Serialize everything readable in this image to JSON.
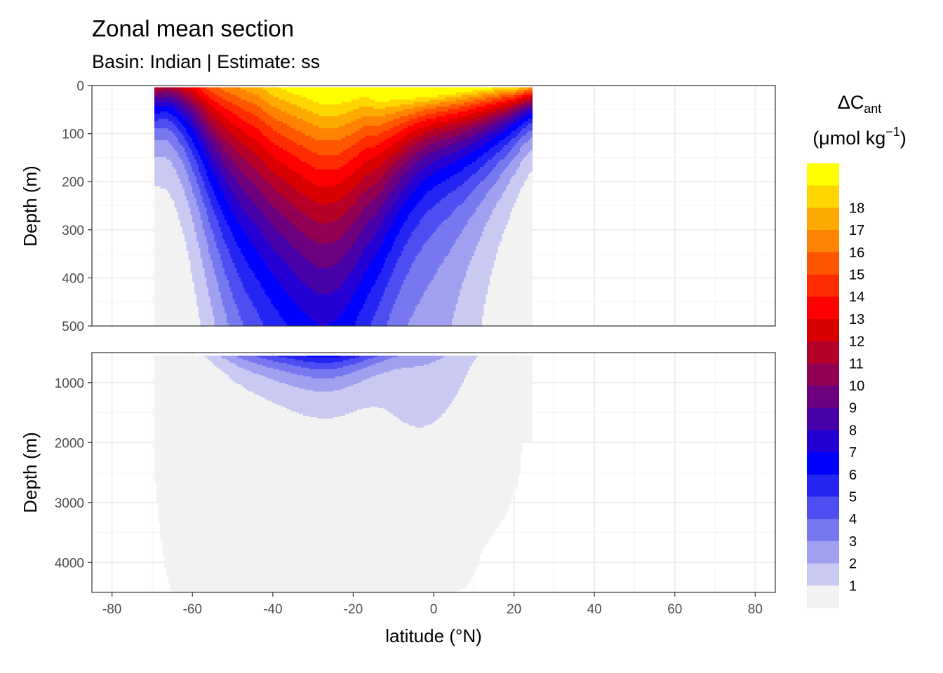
{
  "chart_data": {
    "type": "heatmap",
    "title": "Zonal mean section",
    "subtitle": "Basin: Indian | Estimate: ss",
    "xlabel": "latitude (°N)",
    "ylabel": "Depth (m)",
    "xlim": [
      -85,
      85
    ],
    "x_ticks": [
      -80,
      -60,
      -40,
      -20,
      0,
      20,
      40,
      60,
      80
    ],
    "x_tick_labels": [
      "-80",
      "-60",
      "-40",
      "-20",
      "0",
      "20",
      "40",
      "60",
      "80"
    ],
    "data_lat_range": [
      -69.5,
      24.5
    ],
    "panels": [
      {
        "name": "upper",
        "ylim": [
          0,
          500
        ],
        "y_ticks": [
          0,
          100,
          200,
          300,
          400,
          500
        ],
        "y_tick_labels": [
          "0",
          "100",
          "200",
          "300",
          "400",
          "500"
        ]
      },
      {
        "name": "lower",
        "ylim": [
          500,
          4500
        ],
        "y_ticks": [
          1000,
          2000,
          3000,
          4000
        ],
        "y_tick_labels": [
          "1000",
          "2000",
          "3000",
          "4000"
        ]
      }
    ],
    "legend": {
      "title_symbol": "ΔC",
      "title_subscript": "ant",
      "units_prefix": "(μmol kg",
      "units_superscript": "−1",
      "units_suffix": ")",
      "placement": "right",
      "colors": [
        "#f2f2f2",
        "#c9c9f1",
        "#a0a0f1",
        "#7777f0",
        "#4d4df2",
        "#2424f3",
        "#0000ff",
        "#2400d4",
        "#4800a8",
        "#6d007e",
        "#910052",
        "#b60028",
        "#db0000",
        "#ff0000",
        "#ff2c00",
        "#ff5600",
        "#ff8300",
        "#ffaa00",
        "#ffd600",
        "#ffff00"
      ],
      "labels": [
        "1",
        "2",
        "3",
        "4",
        "5",
        "6",
        "7",
        "8",
        "9",
        "10",
        "11",
        "12",
        "13",
        "14",
        "15",
        "16",
        "17",
        "18"
      ]
    },
    "surface_profile": {
      "lat": [
        -69.5,
        -66,
        -63,
        -60,
        -56,
        -52,
        -48,
        -44,
        -40,
        -36,
        -32,
        -28,
        -24,
        -20,
        -17,
        -14,
        -10,
        -5,
        0,
        5,
        10,
        15,
        20,
        22,
        24.5
      ],
      "value": [
        12,
        11,
        12,
        13,
        15,
        16,
        16.5,
        17,
        18,
        18.5,
        19,
        19.5,
        19.5,
        19,
        18.5,
        19,
        19,
        19,
        19,
        19,
        19,
        19,
        19,
        18.5,
        17.5
      ]
    },
    "bottom_depth": {
      "lat": [
        -69.5,
        -68,
        -67,
        -66,
        -65,
        -60,
        -40,
        -20,
        0,
        5,
        8,
        10,
        12,
        14,
        16,
        18,
        20,
        21,
        22,
        24.5
      ],
      "depth": [
        2500,
        3500,
        4000,
        4300,
        4500,
        4500,
        4500,
        4500,
        4500,
        4500,
        4400,
        4200,
        3800,
        3600,
        3400,
        3200,
        2800,
        2700,
        2000,
        2000
      ]
    }
  }
}
